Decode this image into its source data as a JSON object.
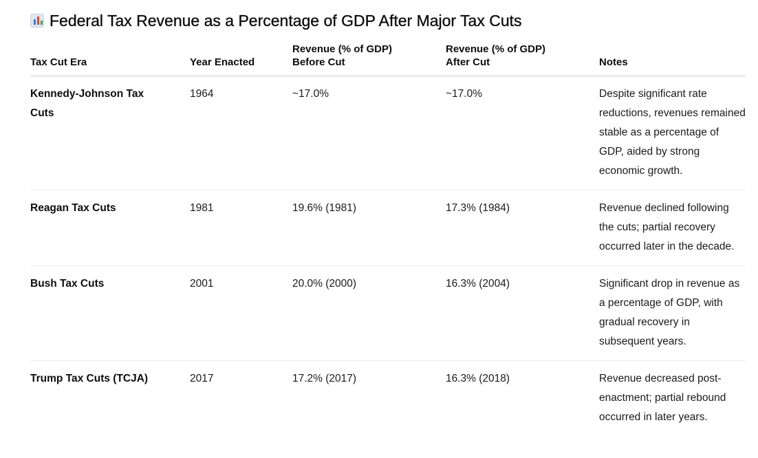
{
  "title_icon": "bar-chart-icon",
  "title": "Federal Tax Revenue as a Percentage of GDP After Major Tax Cuts",
  "table": {
    "headers": {
      "era": "Tax Cut Era",
      "year": "Year Enacted",
      "before_line1": "Revenue (% of GDP)",
      "before_line2": "Before Cut",
      "after_line1": "Revenue (% of GDP)",
      "after_line2": "After Cut",
      "notes": "Notes"
    },
    "rows": [
      {
        "era": "Kennedy-Johnson Tax Cuts",
        "year": "1964",
        "before": "~17.0%",
        "after": "~17.0%",
        "notes": "Despite significant rate reductions, revenues remained stable as a percentage of GDP, aided by strong economic growth."
      },
      {
        "era": "Reagan Tax Cuts",
        "year": "1981",
        "before": "19.6% (1981)",
        "after": "17.3% (1984)",
        "notes": "Revenue declined following the cuts; partial recovery occurred later in the decade."
      },
      {
        "era": "Bush Tax Cuts",
        "year": "2001",
        "before": "20.0% (2000)",
        "after": "16.3% (2004)",
        "notes": "Significant drop in revenue as a percentage of GDP, with gradual recovery in subsequent years."
      },
      {
        "era": "Trump Tax Cuts (TCJA)",
        "year": "2017",
        "before": "17.2% (2017)",
        "after": "16.3% (2018)",
        "notes": "Revenue decreased post-enactment; partial rebound occurred in later years."
      }
    ]
  }
}
